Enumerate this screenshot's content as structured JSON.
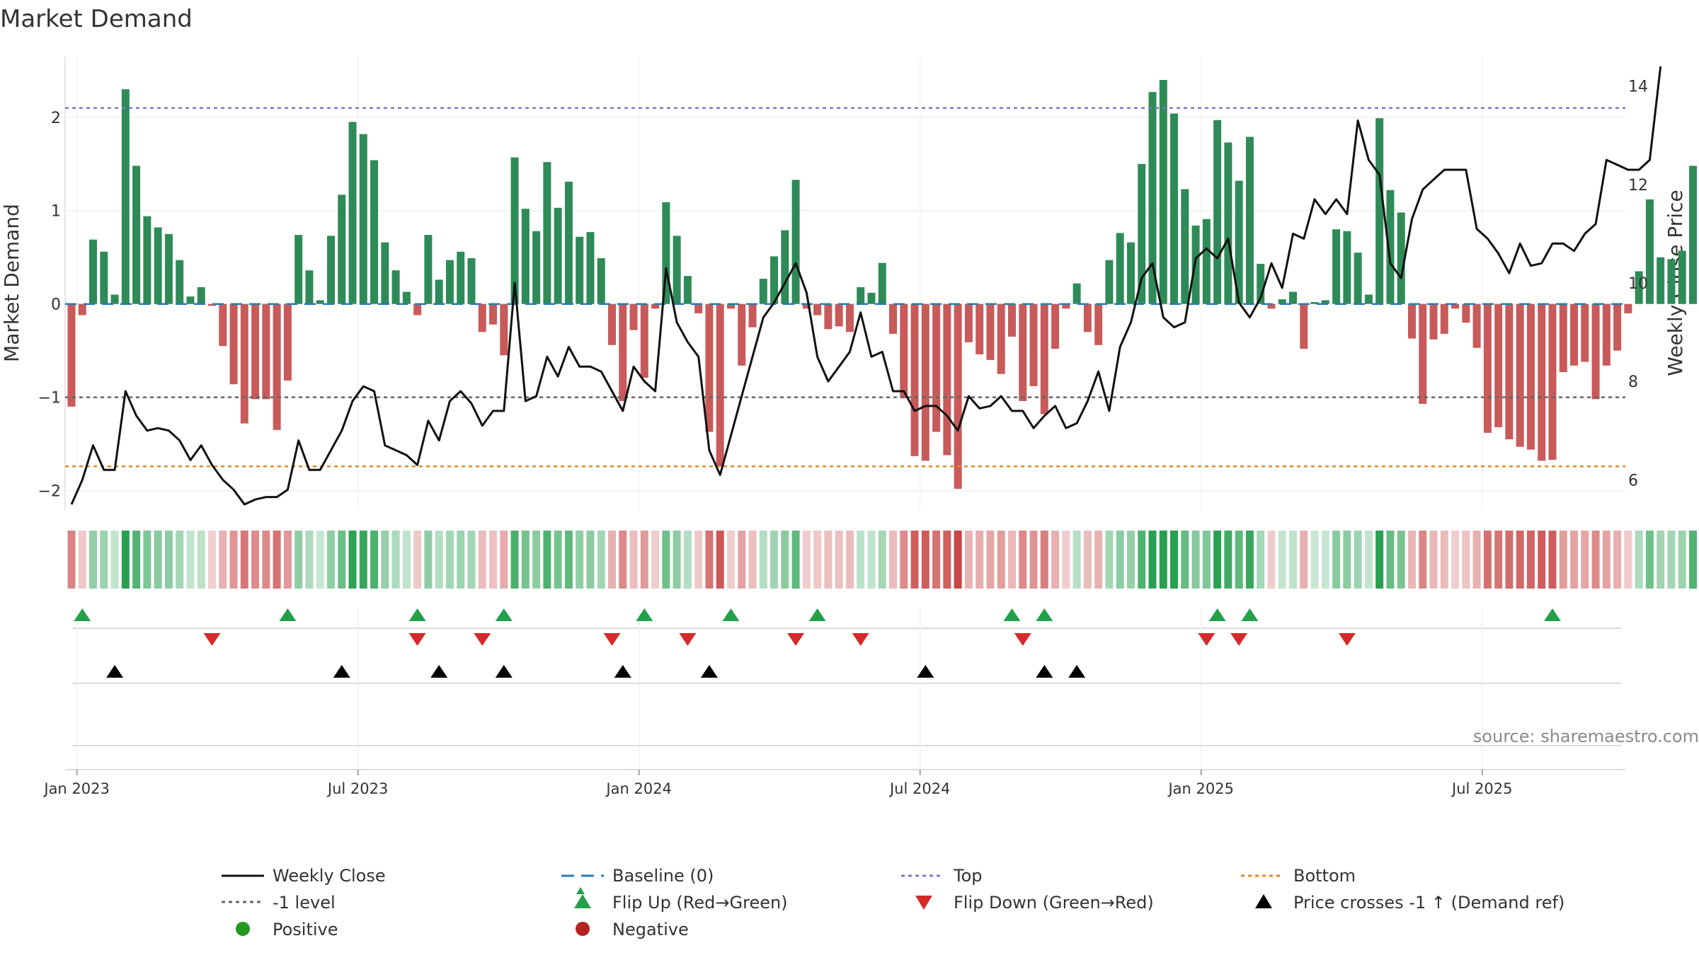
{
  "chart_data": {
    "type": "bar",
    "title": "Market Demand",
    "ylabel_left": "Market Demand",
    "ylabel_right": "Weekly Close Price",
    "ylim_left": [
      -2.2,
      2.65
    ],
    "ylim_right": [
      5.4,
      14.6
    ],
    "left_ticks": [
      "2",
      "1",
      "0",
      "−1",
      "−2"
    ],
    "left_tick_values": [
      2,
      1,
      0,
      -1,
      -2
    ],
    "right_ticks": [
      "6",
      "8",
      "10",
      "12",
      "14"
    ],
    "right_tick_values": [
      6,
      8,
      10,
      12,
      14
    ],
    "x_ticks": [
      "Jan 2023",
      "Jul 2023",
      "Jan 2024",
      "Jul 2024",
      "Jan 2025",
      "Jul 2025"
    ],
    "x_tick_weeks": [
      0.5,
      26.5,
      52.5,
      78.5,
      104.5,
      130.5
    ],
    "levels": {
      "top": 2.1,
      "bottom": -1.74,
      "minus_one": -1.0,
      "baseline": 0
    },
    "demand": [
      -1.1,
      -0.12,
      0.69,
      0.56,
      0.1,
      2.3,
      1.48,
      0.94,
      0.82,
      0.75,
      0.47,
      0.08,
      0.18,
      -0.02,
      -0.45,
      -0.86,
      -1.28,
      -1.02,
      -1.02,
      -1.35,
      -0.82,
      0.74,
      0.36,
      0.04,
      0.73,
      1.17,
      1.95,
      1.82,
      1.54,
      0.66,
      0.36,
      0.13,
      -0.12,
      0.74,
      0.26,
      0.47,
      0.56,
      0.49,
      -0.3,
      -0.22,
      -0.55,
      1.57,
      1.02,
      0.78,
      1.52,
      1.03,
      1.31,
      0.72,
      0.77,
      0.49,
      -0.44,
      -1.04,
      -0.28,
      -0.79,
      -0.05,
      1.09,
      0.73,
      0.3,
      -0.1,
      -1.37,
      -1.74,
      -0.05,
      -0.66,
      -0.25,
      0.27,
      0.51,
      0.79,
      1.33,
      -0.05,
      -0.12,
      -0.27,
      -0.24,
      -0.3,
      0.18,
      0.12,
      0.44,
      -0.32,
      -1.01,
      -1.63,
      -1.68,
      -1.37,
      -1.62,
      -1.98,
      -0.41,
      -0.54,
      -0.6,
      -0.75,
      -0.35,
      -1.04,
      -0.88,
      -1.18,
      -0.48,
      -0.05,
      0.22,
      -0.3,
      -0.44,
      0.47,
      0.76,
      0.66,
      1.5,
      2.27,
      2.4,
      2.04,
      1.23,
      0.84,
      0.91,
      1.97,
      1.73,
      1.32,
      1.79,
      0.43,
      -0.05,
      0.05,
      0.13,
      -0.48,
      0.02,
      0.04,
      0.8,
      0.78,
      0.55,
      0.1,
      1.99,
      1.22,
      0.98,
      -0.37,
      -1.07,
      -0.38,
      -0.32,
      -0.05,
      -0.2,
      -0.47,
      -1.38,
      -1.32,
      -1.45,
      -1.53,
      -1.56,
      -1.68,
      -1.67,
      -0.73,
      -0.66,
      -0.62,
      -1.02,
      -0.66,
      -0.5,
      -0.1,
      0.35,
      1.12,
      0.5,
      0.48,
      0.57,
      1.48
    ],
    "close": [
      5.5,
      6.0,
      6.7,
      6.2,
      6.2,
      7.8,
      7.3,
      7.0,
      7.05,
      7.0,
      6.8,
      6.4,
      6.7,
      6.3,
      6.0,
      5.8,
      5.5,
      5.6,
      5.65,
      5.65,
      5.8,
      6.8,
      6.2,
      6.2,
      6.6,
      7.0,
      7.6,
      7.9,
      7.8,
      6.7,
      6.6,
      6.5,
      6.3,
      7.2,
      6.8,
      7.6,
      7.8,
      7.55,
      7.1,
      7.4,
      7.4,
      10.0,
      7.6,
      7.7,
      8.5,
      8.1,
      8.7,
      8.3,
      8.3,
      8.2,
      7.8,
      7.4,
      8.3,
      8.0,
      7.8,
      10.3,
      9.2,
      8.8,
      8.5,
      6.6,
      6.1,
      6.9,
      7.7,
      8.5,
      9.3,
      9.6,
      10.0,
      10.4,
      9.8,
      8.5,
      8.0,
      8.3,
      8.6,
      9.4,
      8.5,
      8.6,
      7.8,
      7.8,
      7.4,
      7.5,
      7.5,
      7.3,
      7.0,
      7.7,
      7.45,
      7.5,
      7.7,
      7.4,
      7.4,
      7.05,
      7.3,
      7.5,
      7.05,
      7.15,
      7.6,
      8.2,
      7.4,
      8.7,
      9.2,
      10.1,
      10.4,
      9.3,
      9.1,
      9.2,
      10.5,
      10.7,
      10.5,
      10.9,
      9.6,
      9.3,
      9.7,
      10.4,
      9.9,
      11.0,
      10.9,
      11.7,
      11.4,
      11.7,
      11.4,
      13.3,
      12.5,
      12.2,
      10.4,
      10.1,
      11.3,
      11.9,
      12.1,
      12.3,
      12.3,
      12.3,
      11.1,
      10.9,
      10.6,
      10.2,
      10.8,
      10.35,
      10.4,
      10.8,
      10.8,
      10.65,
      11.0,
      11.2,
      12.5,
      12.4,
      12.3,
      12.3,
      12.5,
      14.4
    ],
    "flip_up_weeks": [
      1,
      20,
      32,
      40,
      53,
      61,
      69,
      87,
      90,
      106,
      109,
      137
    ],
    "flip_down_weeks": [
      13,
      32,
      38,
      50,
      57,
      67,
      73,
      88,
      105,
      108,
      118
    ],
    "price_cross_weeks": [
      4,
      25,
      34,
      40,
      51,
      59,
      79,
      90,
      93
    ],
    "source_note": "source: sharemaestro.com",
    "legend": [
      "Weekly Close",
      "Baseline (0)",
      "Top",
      "Bottom",
      "-1 level",
      "Flip Up (Red→Green)",
      "Flip Down (Green→Red)",
      "Price crosses -1 ↑ (Demand ref)",
      "Positive",
      "Negative"
    ],
    "colors": {
      "pos_bar": "#2e8b57",
      "neg_bar": "#c85a5a",
      "line": "#111111",
      "baseline": "#2a7ab8",
      "top": "#7a7ac8",
      "bottom": "#e08a20",
      "minus_one": "#666666",
      "flip_up": "#22a04a",
      "flip_down": "#d42a2a",
      "cross": "#000000",
      "positive_dot": "#229a22",
      "negative_dot": "#b52222"
    }
  }
}
